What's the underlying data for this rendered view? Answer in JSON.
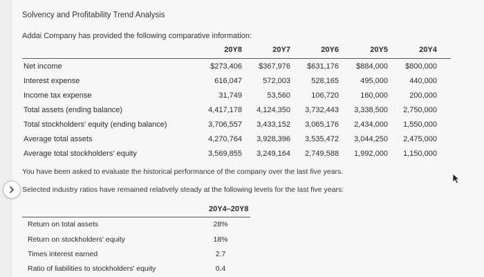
{
  "title": "Solvency and Profitability Trend Analysis",
  "intro": "Addai Company has provided the following comparative information:",
  "years": [
    "20Y8",
    "20Y7",
    "20Y6",
    "20Y5",
    "20Y4"
  ],
  "rows": [
    {
      "label": "Net income",
      "values": [
        "$273,406",
        "$367,976",
        "$631,176",
        "$884,000",
        "$800,000"
      ]
    },
    {
      "label": "Interest expense",
      "values": [
        "616,047",
        "572,003",
        "528,165",
        "495,000",
        "440,000"
      ]
    },
    {
      "label": "Income tax expense",
      "values": [
        "31,749",
        "53,560",
        "106,720",
        "160,000",
        "200,000"
      ]
    },
    {
      "label": "Total assets (ending balance)",
      "values": [
        "4,417,178",
        "4,124,350",
        "3,732,443",
        "3,338,500",
        "2,750,000"
      ]
    },
    {
      "label": "Total stockholders' equity (ending balance)",
      "values": [
        "3,706,557",
        "3,433,152",
        "3,065,176",
        "2,434,000",
        "1,550,000"
      ]
    },
    {
      "label": "Average total assets",
      "values": [
        "4,270,764",
        "3,928,396",
        "3,535,472",
        "3,044,250",
        "2,475,000"
      ]
    },
    {
      "label": "Average total stockholders' equity",
      "values": [
        "3,569,855",
        "3,249,164",
        "2,749,588",
        "1,992,000",
        "1,150,000"
      ]
    }
  ],
  "note1": "You have been asked to evaluate the historical performance of the company over the last five years.",
  "note2": "Selected industry ratios have remained relatively steady at the following levels for the last five years:",
  "ratio_header": "20Y4–20Y8",
  "ratios": [
    {
      "label": "Return on total assets",
      "value": "28%"
    },
    {
      "label": "Return on stockholders' equity",
      "value": "18%"
    },
    {
      "label": "Times interest earned",
      "value": "2.7"
    },
    {
      "label": "Ratio of liabilities to stockholders' equity",
      "value": "0.4"
    }
  ],
  "icons": {
    "expand": "chevron-right-icon",
    "cursor": "mouse-pointer-icon"
  },
  "colors": {
    "background": "#f7f7f7",
    "text": "#2b2b2b",
    "rule": "#555555"
  }
}
